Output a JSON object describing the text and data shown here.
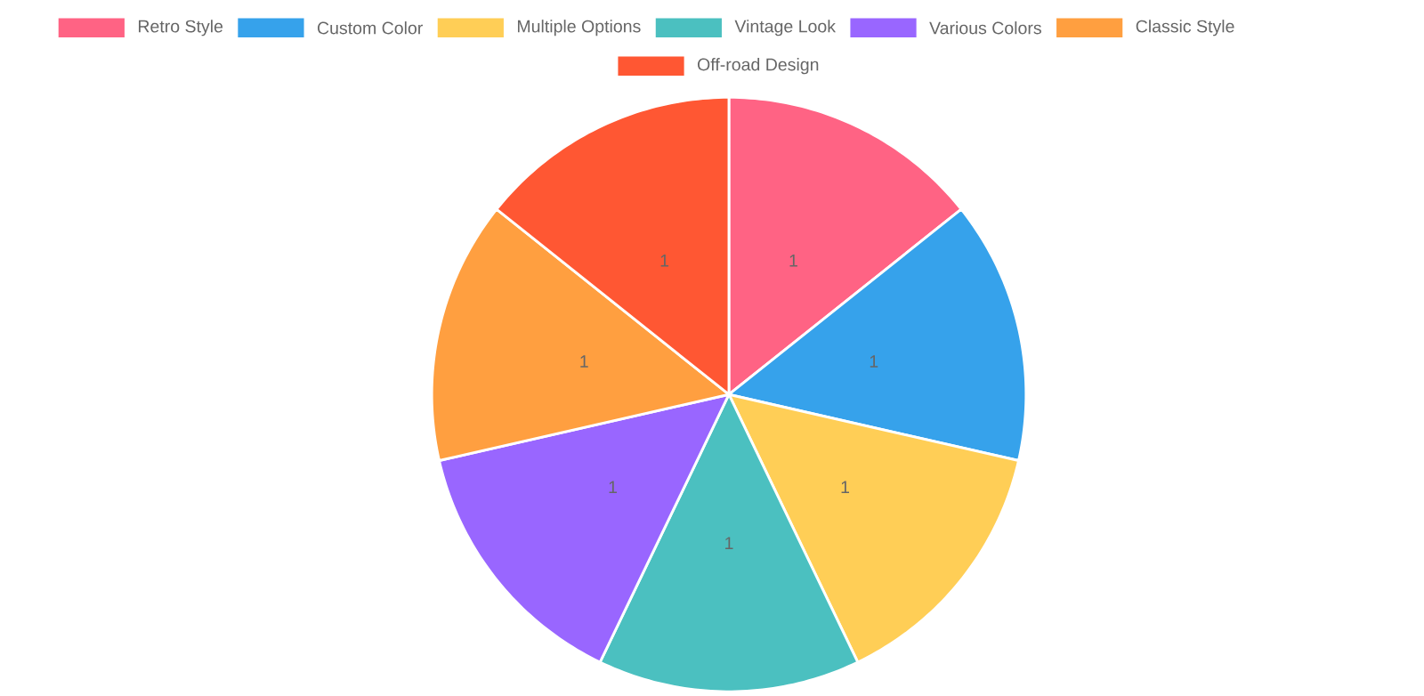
{
  "chart_data": {
    "type": "pie",
    "categories": [
      "Retro Style",
      "Custom Color",
      "Multiple Options",
      "Vintage Look",
      "Various Colors",
      "Classic Style",
      "Off-road Design"
    ],
    "values": [
      1,
      1,
      1,
      1,
      1,
      1,
      1
    ],
    "colors": [
      "#ff6384",
      "#36a2eb",
      "#ffce56",
      "#4bc0c0",
      "#9966ff",
      "#ff9f40",
      "#ff5733"
    ],
    "data_labels": true,
    "legend": "top"
  }
}
